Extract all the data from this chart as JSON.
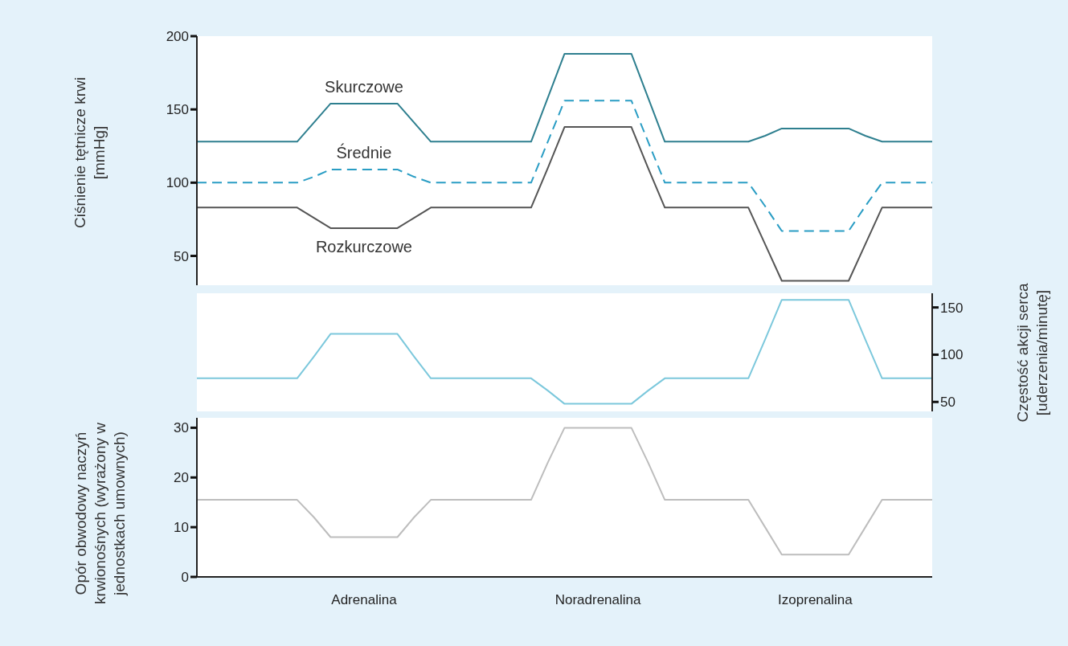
{
  "chart_data": [
    {
      "type": "line",
      "ylabel": "Ciśnienie tętnicze krwi [mmHg]",
      "categories": [
        null,
        null,
        null,
        null,
        null,
        null,
        null,
        null,
        null,
        null,
        null,
        null,
        null,
        null,
        null,
        null,
        null,
        null,
        null,
        null,
        null,
        null,
        null,
        null,
        null,
        null,
        null,
        null,
        null,
        null,
        null,
        null,
        null,
        null,
        null,
        null,
        null,
        null,
        null,
        null,
        null,
        null,
        null,
        null,
        null
      ],
      "ylim": [
        30,
        200
      ],
      "yticks": [
        50,
        100,
        150,
        200
      ],
      "series": [
        {
          "name": "Skurczowe",
          "color": "#2e7f8f",
          "line_style": "solid",
          "values": [
            128,
            128,
            128,
            128,
            128,
            128,
            128,
            141,
            154,
            154,
            154,
            154,
            154,
            141,
            128,
            128,
            128,
            128,
            128,
            128,
            128,
            158,
            188,
            188,
            188,
            188,
            188,
            158,
            128,
            128,
            128,
            128,
            128,
            128,
            132,
            137,
            137,
            137,
            137,
            137,
            132,
            128,
            128,
            128,
            128
          ]
        },
        {
          "name": "Średnie",
          "color": "#2a9dc4",
          "line_style": "dashed",
          "values": [
            100,
            100,
            100,
            100,
            100,
            100,
            100,
            104,
            109,
            109,
            109,
            109,
            109,
            104,
            100,
            100,
            100,
            100,
            100,
            100,
            100,
            128,
            156,
            156,
            156,
            156,
            156,
            128,
            100,
            100,
            100,
            100,
            100,
            100,
            84,
            67,
            67,
            67,
            67,
            67,
            84,
            100,
            100,
            100,
            100
          ]
        },
        {
          "name": "Rozkurczowe",
          "color": "#555555",
          "line_style": "solid",
          "values": [
            83,
            83,
            83,
            83,
            83,
            83,
            83,
            76,
            69,
            69,
            69,
            69,
            69,
            76,
            83,
            83,
            83,
            83,
            83,
            83,
            83,
            110,
            138,
            138,
            138,
            138,
            138,
            110,
            83,
            83,
            83,
            83,
            83,
            83,
            58,
            33,
            33,
            33,
            33,
            33,
            58,
            83,
            83,
            83,
            83
          ]
        }
      ]
    },
    {
      "type": "line",
      "ylabel": "Częstość akcji serca [uderzenia/minutę]",
      "categories": [
        null,
        null,
        null,
        null,
        null,
        null,
        null,
        null,
        null,
        null,
        null,
        null,
        null,
        null,
        null,
        null,
        null,
        null,
        null,
        null,
        null,
        null,
        null,
        null,
        null,
        null,
        null,
        null,
        null,
        null,
        null,
        null,
        null,
        null,
        null,
        null,
        null,
        null,
        null,
        null,
        null,
        null,
        null,
        null,
        null
      ],
      "ylim": [
        40,
        165
      ],
      "yticks": [
        50,
        100,
        150
      ],
      "series": [
        {
          "color": "#7cc8dc",
          "values": [
            75,
            75,
            75,
            75,
            75,
            75,
            75,
            98,
            122,
            122,
            122,
            122,
            122,
            98,
            75,
            75,
            75,
            75,
            75,
            75,
            75,
            62,
            48,
            48,
            48,
            48,
            48,
            62,
            75,
            75,
            75,
            75,
            75,
            75,
            116,
            158,
            158,
            158,
            158,
            158,
            116,
            75,
            75,
            75,
            75
          ]
        }
      ]
    },
    {
      "type": "line",
      "ylabel": "Opór obwodowy naczyń krwionośnych (wyrażony w jednostkach umownych)",
      "categories": [
        null,
        null,
        null,
        null,
        null,
        null,
        null,
        null,
        null,
        null,
        "Adrenalina",
        null,
        null,
        null,
        null,
        null,
        null,
        null,
        null,
        null,
        null,
        null,
        null,
        null,
        "Noradrenalina",
        null,
        null,
        null,
        null,
        null,
        null,
        null,
        null,
        null,
        null,
        null,
        null,
        "Izoprenalina",
        null,
        null,
        null,
        null,
        null,
        null,
        null
      ],
      "ylim": [
        0,
        32
      ],
      "yticks": [
        0,
        10,
        20,
        30
      ],
      "series": [
        {
          "color": "#bdbdbd",
          "values": [
            15.5,
            15.5,
            15.5,
            15.5,
            15.5,
            15.5,
            15.5,
            12,
            8,
            8,
            8,
            8,
            8,
            12,
            15.5,
            15.5,
            15.5,
            15.5,
            15.5,
            15.5,
            15.5,
            23,
            30,
            30,
            30,
            30,
            30,
            23,
            15.5,
            15.5,
            15.5,
            15.5,
            15.5,
            15.5,
            10,
            4.5,
            4.5,
            4.5,
            4.5,
            4.5,
            10,
            15.5,
            15.5,
            15.5,
            15.5
          ]
        }
      ]
    }
  ]
}
